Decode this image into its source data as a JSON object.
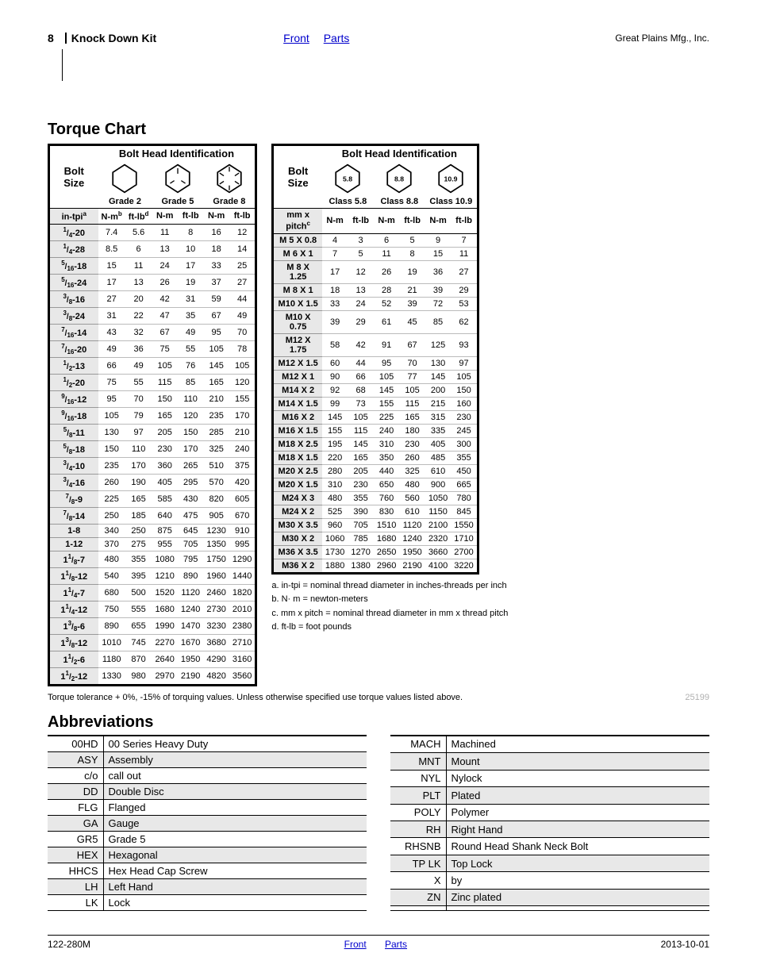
{
  "header": {
    "page_number": "8",
    "doc_title": "Knock Down Kit",
    "nav_front": "Front",
    "nav_parts": "Parts",
    "company": "Great Plains Mfg., Inc."
  },
  "section_torque": "Torque Chart",
  "section_abbrev": "Abbreviations",
  "torque": {
    "bolt_head_label": "Bolt Head Identification",
    "bolt_size_label": "Bolt Size",
    "imperial": {
      "grades": [
        "Grade 2",
        "Grade 5",
        "Grade 8"
      ],
      "size_hdr": "in-tpi",
      "size_sup": "a",
      "unit_nm": "N-m",
      "nm_sup": "b",
      "unit_ftlb": "ft-lb",
      "ftlb_sup": "d",
      "icon_labels": [
        "",
        "",
        ""
      ],
      "rows": [
        {
          "s": "1/4-20",
          "v": [
            "7.4",
            "5.6",
            "11",
            "8",
            "16",
            "12"
          ]
        },
        {
          "s": "1/4-28",
          "v": [
            "8.5",
            "6",
            "13",
            "10",
            "18",
            "14"
          ]
        },
        {
          "s": "5/16-18",
          "v": [
            "15",
            "11",
            "24",
            "17",
            "33",
            "25"
          ]
        },
        {
          "s": "5/16-24",
          "v": [
            "17",
            "13",
            "26",
            "19",
            "37",
            "27"
          ]
        },
        {
          "s": "3/8-16",
          "v": [
            "27",
            "20",
            "42",
            "31",
            "59",
            "44"
          ]
        },
        {
          "s": "3/8-24",
          "v": [
            "31",
            "22",
            "47",
            "35",
            "67",
            "49"
          ]
        },
        {
          "s": "7/16-14",
          "v": [
            "43",
            "32",
            "67",
            "49",
            "95",
            "70"
          ]
        },
        {
          "s": "7/16-20",
          "v": [
            "49",
            "36",
            "75",
            "55",
            "105",
            "78"
          ]
        },
        {
          "s": "1/2-13",
          "v": [
            "66",
            "49",
            "105",
            "76",
            "145",
            "105"
          ]
        },
        {
          "s": "1/2-20",
          "v": [
            "75",
            "55",
            "115",
            "85",
            "165",
            "120"
          ]
        },
        {
          "s": "9/16-12",
          "v": [
            "95",
            "70",
            "150",
            "110",
            "210",
            "155"
          ]
        },
        {
          "s": "9/16-18",
          "v": [
            "105",
            "79",
            "165",
            "120",
            "235",
            "170"
          ]
        },
        {
          "s": "5/8-11",
          "v": [
            "130",
            "97",
            "205",
            "150",
            "285",
            "210"
          ]
        },
        {
          "s": "5/8-18",
          "v": [
            "150",
            "110",
            "230",
            "170",
            "325",
            "240"
          ]
        },
        {
          "s": "3/4-10",
          "v": [
            "235",
            "170",
            "360",
            "265",
            "510",
            "375"
          ]
        },
        {
          "s": "3/4-16",
          "v": [
            "260",
            "190",
            "405",
            "295",
            "570",
            "420"
          ]
        },
        {
          "s": "7/8-9",
          "v": [
            "225",
            "165",
            "585",
            "430",
            "820",
            "605"
          ]
        },
        {
          "s": "7/8-14",
          "v": [
            "250",
            "185",
            "640",
            "475",
            "905",
            "670"
          ]
        },
        {
          "s": "1-8",
          "v": [
            "340",
            "250",
            "875",
            "645",
            "1230",
            "910"
          ]
        },
        {
          "s": "1-12",
          "v": [
            "370",
            "275",
            "955",
            "705",
            "1350",
            "995"
          ]
        },
        {
          "s": "1 1/8-7",
          "v": [
            "480",
            "355",
            "1080",
            "795",
            "1750",
            "1290"
          ]
        },
        {
          "s": "1 1/8-12",
          "v": [
            "540",
            "395",
            "1210",
            "890",
            "1960",
            "1440"
          ]
        },
        {
          "s": "1 1/4-7",
          "v": [
            "680",
            "500",
            "1520",
            "1120",
            "2460",
            "1820"
          ]
        },
        {
          "s": "1 1/4-12",
          "v": [
            "750",
            "555",
            "1680",
            "1240",
            "2730",
            "2010"
          ]
        },
        {
          "s": "1 3/8-6",
          "v": [
            "890",
            "655",
            "1990",
            "1470",
            "3230",
            "2380"
          ]
        },
        {
          "s": "1 3/8-12",
          "v": [
            "1010",
            "745",
            "2270",
            "1670",
            "3680",
            "2710"
          ]
        },
        {
          "s": "1 1/2-6",
          "v": [
            "1180",
            "870",
            "2640",
            "1950",
            "4290",
            "3160"
          ]
        },
        {
          "s": "1 1/2-12",
          "v": [
            "1330",
            "980",
            "2970",
            "2190",
            "4820",
            "3560"
          ]
        }
      ]
    },
    "metric": {
      "classes": [
        "Class 5.8",
        "Class 8.8",
        "Class 10.9"
      ],
      "icon_labels": [
        "5.8",
        "8.8",
        "10.9"
      ],
      "size_hdr": "mm x pitch",
      "size_sup": "c",
      "unit_nm": "N-m",
      "unit_ftlb": "ft-lb",
      "rows": [
        {
          "s": "M 5 X 0.8",
          "v": [
            "4",
            "3",
            "6",
            "5",
            "9",
            "7"
          ]
        },
        {
          "s": "M 6 X 1",
          "v": [
            "7",
            "5",
            "11",
            "8",
            "15",
            "11"
          ]
        },
        {
          "s": "M 8 X 1.25",
          "v": [
            "17",
            "12",
            "26",
            "19",
            "36",
            "27"
          ]
        },
        {
          "s": "M 8 X 1",
          "v": [
            "18",
            "13",
            "28",
            "21",
            "39",
            "29"
          ]
        },
        {
          "s": "M10 X 1.5",
          "v": [
            "33",
            "24",
            "52",
            "39",
            "72",
            "53"
          ]
        },
        {
          "s": "M10 X 0.75",
          "v": [
            "39",
            "29",
            "61",
            "45",
            "85",
            "62"
          ]
        },
        {
          "s": "M12 X 1.75",
          "v": [
            "58",
            "42",
            "91",
            "67",
            "125",
            "93"
          ]
        },
        {
          "s": "M12 X 1.5",
          "v": [
            "60",
            "44",
            "95",
            "70",
            "130",
            "97"
          ]
        },
        {
          "s": "M12 X 1",
          "v": [
            "90",
            "66",
            "105",
            "77",
            "145",
            "105"
          ]
        },
        {
          "s": "M14 X 2",
          "v": [
            "92",
            "68",
            "145",
            "105",
            "200",
            "150"
          ]
        },
        {
          "s": "M14 X 1.5",
          "v": [
            "99",
            "73",
            "155",
            "115",
            "215",
            "160"
          ]
        },
        {
          "s": "M16 X 2",
          "v": [
            "145",
            "105",
            "225",
            "165",
            "315",
            "230"
          ]
        },
        {
          "s": "M16 X 1.5",
          "v": [
            "155",
            "115",
            "240",
            "180",
            "335",
            "245"
          ]
        },
        {
          "s": "M18 X 2.5",
          "v": [
            "195",
            "145",
            "310",
            "230",
            "405",
            "300"
          ]
        },
        {
          "s": "M18 X 1.5",
          "v": [
            "220",
            "165",
            "350",
            "260",
            "485",
            "355"
          ]
        },
        {
          "s": "M20 X 2.5",
          "v": [
            "280",
            "205",
            "440",
            "325",
            "610",
            "450"
          ]
        },
        {
          "s": "M20 X 1.5",
          "v": [
            "310",
            "230",
            "650",
            "480",
            "900",
            "665"
          ]
        },
        {
          "s": "M24 X 3",
          "v": [
            "480",
            "355",
            "760",
            "560",
            "1050",
            "780"
          ]
        },
        {
          "s": "M24 X 2",
          "v": [
            "525",
            "390",
            "830",
            "610",
            "1150",
            "845"
          ]
        },
        {
          "s": "M30 X 3.5",
          "v": [
            "960",
            "705",
            "1510",
            "1120",
            "2100",
            "1550"
          ]
        },
        {
          "s": "M30 X 2",
          "v": [
            "1060",
            "785",
            "1680",
            "1240",
            "2320",
            "1710"
          ]
        },
        {
          "s": "M36 X 3.5",
          "v": [
            "1730",
            "1270",
            "2650",
            "1950",
            "3660",
            "2700"
          ]
        },
        {
          "s": "M36 X 2",
          "v": [
            "1880",
            "1380",
            "2960",
            "2190",
            "4100",
            "3220"
          ]
        }
      ]
    },
    "footnotes": [
      "a.  in-tpi = nominal thread diameter in inches-threads per inch",
      "b.  N· m = newton-meters",
      "c.  mm x pitch = nominal thread diameter in mm x thread  pitch",
      "d.  ft-lb = foot pounds"
    ],
    "tolerance_note": "Torque tolerance + 0%, -15% of torquing values. Unless otherwise specified use torque values listed above.",
    "code": "25199"
  },
  "abbreviations": {
    "left": [
      [
        "00HD",
        "00 Series Heavy Duty"
      ],
      [
        "ASY",
        "Assembly"
      ],
      [
        "c/o",
        "call out"
      ],
      [
        "DD",
        "Double Disc"
      ],
      [
        "FLG",
        "Flanged"
      ],
      [
        "GA",
        "Gauge"
      ],
      [
        "GR5",
        "Grade 5"
      ],
      [
        "HEX",
        "Hexagonal"
      ],
      [
        "HHCS",
        "Hex Head Cap Screw"
      ],
      [
        "LH",
        "Left Hand"
      ],
      [
        "LK",
        "Lock"
      ]
    ],
    "right": [
      [
        "MACH",
        "Machined"
      ],
      [
        "MNT",
        "Mount"
      ],
      [
        "NYL",
        "Nylock"
      ],
      [
        "PLT",
        "Plated"
      ],
      [
        "POLY",
        "Polymer"
      ],
      [
        "RH",
        "Right Hand"
      ],
      [
        "RHSNB",
        "Round Head Shank Neck Bolt"
      ],
      [
        "TP LK",
        "Top Lock"
      ],
      [
        "X",
        "by"
      ],
      [
        "ZN",
        "Zinc plated"
      ],
      [
        "",
        ""
      ]
    ]
  },
  "footer": {
    "doc_code": "122-280M",
    "nav_front": "Front",
    "nav_parts": "Parts",
    "date": "2013-10-01"
  },
  "colors": {
    "link": "#0000cc",
    "shade": "#e8e8e8",
    "text": "#000000",
    "muted": "#b0b0b0"
  }
}
